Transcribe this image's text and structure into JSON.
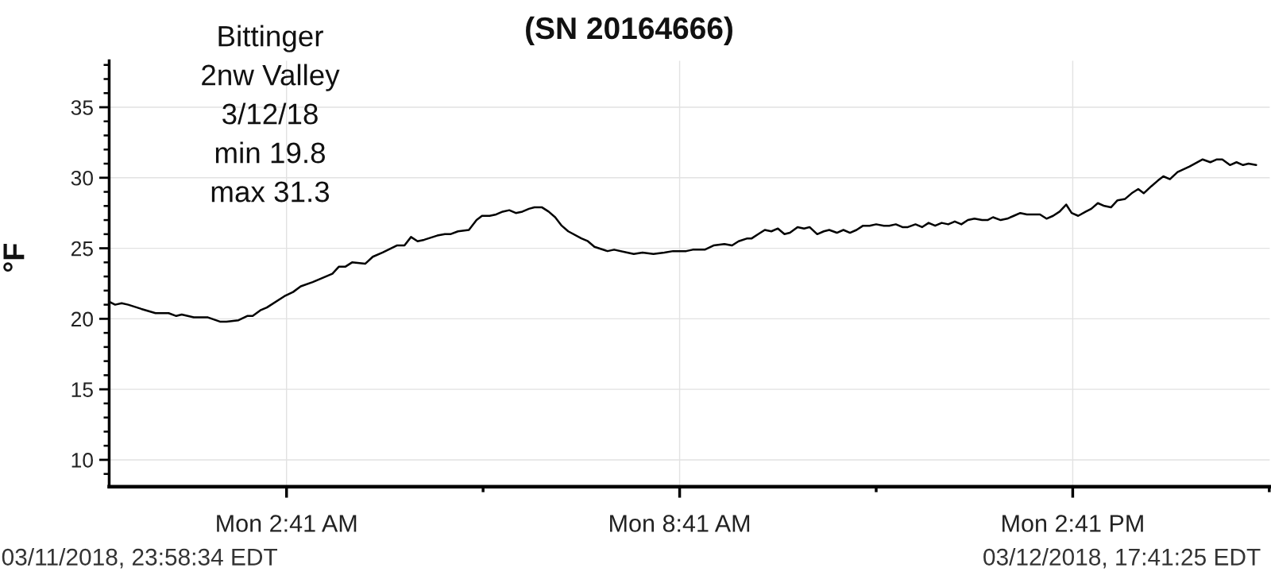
{
  "chart_data": {
    "type": "line",
    "title": "(SN 20164666)",
    "ylabel": "°F",
    "annotations": [
      "Bittinger\n2nw Valley\n3/12/18\nmin 19.8\nmax 31.3",
      "03/11/2018, 23:58:34 EDT",
      "03/12/2018, 17:41:25 EDT"
    ],
    "xlim": [
      "2018-03-11T23:58:34",
      "2018-03-12T17:41:25"
    ],
    "xticks": [
      {
        "value": "2018-03-12T02:41",
        "label": "Mon 2:41 AM"
      },
      {
        "value": "2018-03-12T05:41",
        "label": null
      },
      {
        "value": "2018-03-12T08:41",
        "label": "Mon 8:41 AM"
      },
      {
        "value": "2018-03-12T11:41",
        "label": null
      },
      {
        "value": "2018-03-12T14:41",
        "label": "Mon 2:41 PM"
      },
      {
        "value": "2018-03-12T17:41",
        "label": null
      }
    ],
    "ylim": [
      8.1,
      38.3
    ],
    "yticks": [
      {
        "value": 9,
        "label": null
      },
      10,
      {
        "value": 11,
        "label": null
      },
      {
        "value": 12,
        "label": null
      },
      {
        "value": 13,
        "label": null
      },
      {
        "value": 14,
        "label": null
      },
      15,
      {
        "value": 16,
        "label": null
      },
      {
        "value": 17,
        "label": null
      },
      {
        "value": 18,
        "label": null
      },
      {
        "value": 19,
        "label": null
      },
      20,
      {
        "value": 21,
        "label": null
      },
      {
        "value": 22,
        "label": null
      },
      {
        "value": 23,
        "label": null
      },
      {
        "value": 24,
        "label": null
      },
      25,
      {
        "value": 26,
        "label": null
      },
      {
        "value": 27,
        "label": null
      },
      {
        "value": 28,
        "label": null
      },
      {
        "value": 29,
        "label": null
      },
      30,
      {
        "value": 31,
        "label": null
      },
      {
        "value": 32,
        "label": null
      },
      {
        "value": 33,
        "label": null
      },
      {
        "value": 34,
        "label": null
      },
      35,
      {
        "value": 36,
        "label": null
      },
      {
        "value": 37,
        "label": null
      },
      {
        "value": 38,
        "label": null
      }
    ],
    "grid": true,
    "series": [
      {
        "color": "#000000",
        "x": [
          "2018-03-11T23:59",
          "2018-03-12T00:04",
          "2018-03-12T00:10",
          "2018-03-12T00:16",
          "2018-03-12T00:28",
          "2018-03-12T00:41",
          "2018-03-12T00:47",
          "2018-03-12T00:53",
          "2018-03-12T01:00",
          "2018-03-12T01:05",
          "2018-03-12T01:16",
          "2018-03-12T01:29",
          "2018-03-12T01:40",
          "2018-03-12T01:46",
          "2018-03-12T01:57",
          "2018-03-12T02:05",
          "2018-03-12T02:10",
          "2018-03-12T02:17",
          "2018-03-12T02:23",
          "2018-03-12T02:39",
          "2018-03-12T02:47",
          "2018-03-12T02:54",
          "2018-03-12T03:05",
          "2018-03-12T03:23",
          "2018-03-12T03:29",
          "2018-03-12T03:35",
          "2018-03-12T03:41",
          "2018-03-12T03:53",
          "2018-03-12T04:00",
          "2018-03-12T04:09",
          "2018-03-12T04:22",
          "2018-03-12T04:29",
          "2018-03-12T04:35",
          "2018-03-12T04:41",
          "2018-03-12T04:47",
          "2018-03-12T04:59",
          "2018-03-12T05:06",
          "2018-03-12T05:11",
          "2018-03-12T05:18",
          "2018-03-12T05:28",
          "2018-03-12T05:35",
          "2018-03-12T05:40",
          "2018-03-12T05:47",
          "2018-03-12T05:53",
          "2018-03-12T05:59",
          "2018-03-12T06:05",
          "2018-03-12T06:11",
          "2018-03-12T06:17",
          "2018-03-12T06:23",
          "2018-03-12T06:28",
          "2018-03-12T06:35",
          "2018-03-12T06:41",
          "2018-03-12T06:47",
          "2018-03-12T06:53",
          "2018-03-12T06:59",
          "2018-03-12T07:11",
          "2018-03-12T07:17",
          "2018-03-12T07:23",
          "2018-03-12T07:35",
          "2018-03-12T07:41",
          "2018-03-12T07:53",
          "2018-03-12T07:59",
          "2018-03-12T08:07",
          "2018-03-12T08:17",
          "2018-03-12T08:27",
          "2018-03-12T08:35",
          "2018-03-12T08:47",
          "2018-03-12T08:53",
          "2018-03-12T08:59",
          "2018-03-12T09:04",
          "2018-03-12T09:12",
          "2018-03-12T09:22",
          "2018-03-12T09:29",
          "2018-03-12T09:35",
          "2018-03-12T09:43",
          "2018-03-12T09:47",
          "2018-03-12T09:53",
          "2018-03-12T09:59",
          "2018-03-12T10:05",
          "2018-03-12T10:11",
          "2018-03-12T10:17",
          "2018-03-12T10:22",
          "2018-03-12T10:29",
          "2018-03-12T10:35",
          "2018-03-12T10:40",
          "2018-03-12T10:47",
          "2018-03-12T10:53",
          "2018-03-12T10:58",
          "2018-03-12T11:05",
          "2018-03-12T11:11",
          "2018-03-12T11:17",
          "2018-03-12T11:23",
          "2018-03-12T11:29",
          "2018-03-12T11:35",
          "2018-03-12T11:41",
          "2018-03-12T11:48",
          "2018-03-12T11:53",
          "2018-03-12T11:59",
          "2018-03-12T12:05",
          "2018-03-12T12:10",
          "2018-03-12T12:17",
          "2018-03-12T12:23",
          "2018-03-12T12:29",
          "2018-03-12T12:35",
          "2018-03-12T12:41",
          "2018-03-12T12:47",
          "2018-03-12T12:53",
          "2018-03-12T12:59",
          "2018-03-12T13:05",
          "2018-03-12T13:11",
          "2018-03-12T13:18",
          "2018-03-12T13:23",
          "2018-03-12T13:28",
          "2018-03-12T13:35",
          "2018-03-12T13:41",
          "2018-03-12T13:47",
          "2018-03-12T13:53",
          "2018-03-12T13:59",
          "2018-03-12T14:11",
          "2018-03-12T14:17",
          "2018-03-12T14:23",
          "2018-03-12T14:29",
          "2018-03-12T14:35",
          "2018-03-12T14:40",
          "2018-03-12T14:46",
          "2018-03-12T14:53",
          "2018-03-12T14:58",
          "2018-03-12T15:04",
          "2018-03-12T15:10",
          "2018-03-12T15:16",
          "2018-03-12T15:22",
          "2018-03-12T15:29",
          "2018-03-12T15:35",
          "2018-03-12T15:41",
          "2018-03-12T15:46",
          "2018-03-12T15:53",
          "2018-03-12T15:59",
          "2018-03-12T16:04",
          "2018-03-12T16:10",
          "2018-03-12T16:17",
          "2018-03-12T16:28",
          "2018-03-12T16:40",
          "2018-03-12T16:47",
          "2018-03-12T16:53",
          "2018-03-12T16:58",
          "2018-03-12T17:05",
          "2018-03-12T17:11",
          "2018-03-12T17:17",
          "2018-03-12T17:22",
          "2018-03-12T17:29"
        ],
        "values": [
          21.2,
          21.0,
          21.1,
          21.0,
          20.7,
          20.4,
          20.4,
          20.4,
          20.2,
          20.3,
          20.1,
          20.1,
          19.8,
          19.8,
          19.9,
          20.2,
          20.2,
          20.6,
          20.8,
          21.6,
          21.9,
          22.3,
          22.6,
          23.2,
          23.7,
          23.7,
          24.0,
          23.9,
          24.4,
          24.7,
          25.2,
          25.2,
          25.8,
          25.5,
          25.6,
          25.9,
          26.0,
          26.0,
          26.2,
          26.3,
          27.0,
          27.3,
          27.3,
          27.4,
          27.6,
          27.7,
          27.5,
          27.6,
          27.8,
          27.9,
          27.9,
          27.6,
          27.2,
          26.6,
          26.2,
          25.7,
          25.5,
          25.1,
          24.8,
          24.9,
          24.7,
          24.6,
          24.7,
          24.6,
          24.7,
          24.8,
          24.8,
          24.9,
          24.9,
          24.9,
          25.2,
          25.3,
          25.2,
          25.5,
          25.7,
          25.7,
          26.0,
          26.3,
          26.2,
          26.4,
          26.0,
          26.1,
          26.5,
          26.4,
          26.5,
          26.0,
          26.2,
          26.3,
          26.1,
          26.3,
          26.1,
          26.3,
          26.6,
          26.6,
          26.7,
          26.6,
          26.6,
          26.7,
          26.5,
          26.5,
          26.7,
          26.5,
          26.8,
          26.6,
          26.8,
          26.7,
          26.9,
          26.7,
          27.0,
          27.1,
          27.0,
          27.0,
          27.2,
          27.0,
          27.1,
          27.3,
          27.5,
          27.4,
          27.4,
          27.1,
          27.3,
          27.6,
          28.1,
          27.5,
          27.3,
          27.6,
          27.8,
          28.2,
          28.0,
          27.9,
          28.4,
          28.5,
          28.9,
          29.2,
          28.9,
          29.4,
          29.8,
          30.1,
          29.9,
          30.4,
          30.8,
          31.3,
          31.1,
          31.3,
          31.3,
          30.9,
          31.1,
          30.9,
          31.0,
          30.9
        ]
      }
    ]
  }
}
